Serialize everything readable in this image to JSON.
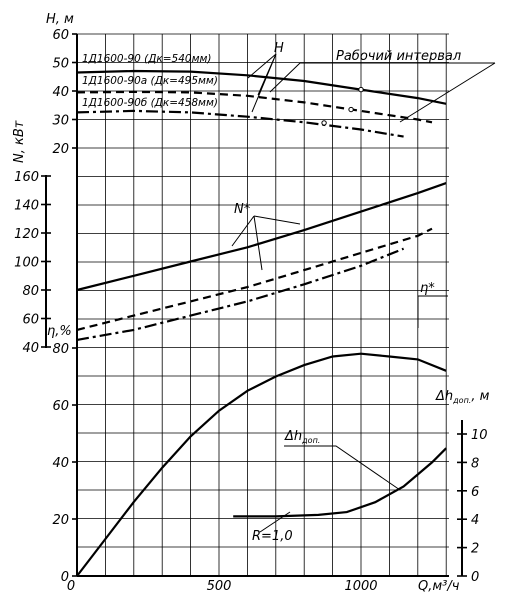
{
  "chart_data": {
    "type": "line",
    "x_axis": {
      "label": "Q,м³/ч",
      "ticks": [
        "0",
        "500",
        "1000"
      ],
      "range": [
        0,
        1300
      ]
    },
    "axes": {
      "H": {
        "label": "H, м",
        "ticks": [
          "60",
          "50",
          "40",
          "30",
          "20"
        ],
        "range": [
          20,
          60
        ]
      },
      "N": {
        "label": "N, кВт",
        "ticks": [
          "160",
          "140",
          "120",
          "100",
          "80",
          "60",
          "40"
        ],
        "range": [
          40,
          160
        ]
      },
      "eta": {
        "label": "η,%",
        "ticks": [
          "80",
          "60",
          "40",
          "20",
          "0"
        ],
        "range": [
          0,
          80
        ]
      },
      "dh": {
        "label": "Δh",
        "label_sub": "доп.",
        "label_unit": ", м",
        "ticks": [
          "10",
          "8",
          "6",
          "4",
          "2",
          "0"
        ],
        "range": [
          0,
          10
        ]
      }
    },
    "annotations": {
      "H": "H",
      "N": "N*",
      "eta": "η*",
      "dh": "Δh",
      "dh_sub": "доп.",
      "work": "Рабочий интервал",
      "R": "R=1,0"
    },
    "series": [
      {
        "name": "1Д1600-90 (Дк=540мм)",
        "axis": "H",
        "style": "solid",
        "x": [
          0,
          200,
          400,
          600,
          800,
          1000,
          1200,
          1300
        ],
        "y": [
          46.5,
          47,
          46.8,
          45.5,
          43.5,
          40.5,
          37.5,
          35.5
        ]
      },
      {
        "name": "1Д1600-90а (Дк=495мм)",
        "axis": "H",
        "style": "dash",
        "x": [
          0,
          200,
          400,
          600,
          800,
          1000,
          1200,
          1250
        ],
        "y": [
          39.5,
          39.7,
          39.5,
          38.3,
          36,
          33,
          30,
          29
        ]
      },
      {
        "name": "1Д1600-90б (Дк=458мм)",
        "axis": "H",
        "style": "dashdot",
        "x": [
          0,
          200,
          400,
          600,
          800,
          1000,
          1150
        ],
        "y": [
          32.5,
          33,
          32.5,
          31,
          29,
          26.5,
          24
        ]
      },
      {
        "axis": "N",
        "style": "solid",
        "x": [
          0,
          200,
          400,
          600,
          800,
          1000,
          1200,
          1300
        ],
        "y": [
          80,
          90,
          100,
          110,
          122,
          135,
          148,
          155
        ]
      },
      {
        "axis": "N",
        "style": "dash",
        "x": [
          0,
          200,
          400,
          600,
          800,
          1000,
          1200,
          1250
        ],
        "y": [
          52,
          62,
          72,
          82,
          94,
          106,
          118,
          123
        ]
      },
      {
        "axis": "N",
        "style": "dashdot",
        "x": [
          0,
          200,
          400,
          600,
          800,
          1000,
          1150
        ],
        "y": [
          45,
          52,
          62,
          72,
          84,
          97,
          109
        ]
      },
      {
        "axis": "eta",
        "style": "solid",
        "x": [
          0,
          100,
          200,
          300,
          400,
          500,
          600,
          700,
          800,
          900,
          1000,
          1100,
          1200,
          1300
        ],
        "y": [
          0,
          13,
          26,
          38,
          49,
          58,
          65,
          70,
          74,
          77,
          78,
          77,
          76,
          72
        ]
      },
      {
        "axis": "dh",
        "style": "solid",
        "x": [
          550,
          700,
          850,
          950,
          1050,
          1150,
          1250,
          1300
        ],
        "y": [
          4.2,
          4.2,
          4.3,
          4.5,
          5.2,
          6.3,
          8,
          9
        ]
      }
    ]
  }
}
